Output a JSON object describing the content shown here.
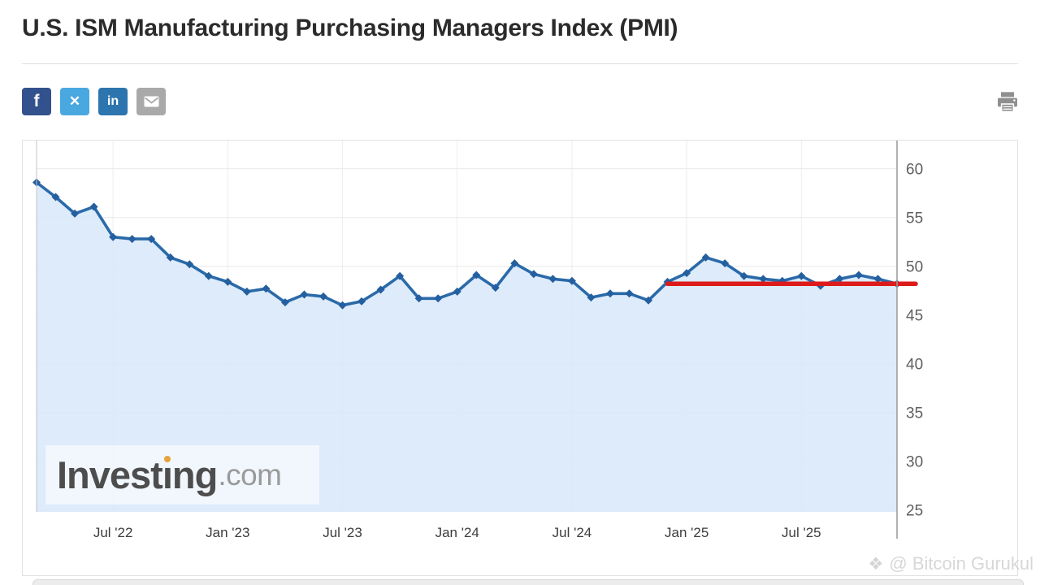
{
  "header": {
    "title": "U.S. ISM Manufacturing Purchasing Managers Index (PMI)"
  },
  "share": {
    "facebook_label": "f",
    "twitter_label": "✕",
    "linkedin_label": "in"
  },
  "chart_data": {
    "type": "area",
    "series_name": "U.S. ISM Manufacturing PMI",
    "x": [
      "Mar '22",
      "Apr '22",
      "May '22",
      "Jun '22",
      "Jul '22",
      "Aug '22",
      "Sep '22",
      "Oct '22",
      "Nov '22",
      "Dec '22",
      "Jan '23",
      "Feb '23",
      "Mar '23",
      "Apr '23",
      "May '23",
      "Jun '23",
      "Jul '23",
      "Aug '23",
      "Sep '23",
      "Oct '23",
      "Nov '23",
      "Dec '23",
      "Jan '24",
      "Feb '24",
      "Mar '24",
      "Apr '24",
      "May '24",
      "Jun '24",
      "Jul '24",
      "Aug '24",
      "Sep '24",
      "Oct '24",
      "Nov '24",
      "Dec '24",
      "Jan '25",
      "Feb '25",
      "Mar '25",
      "Apr '25",
      "May '25",
      "Jun '25",
      "Jul '25",
      "Aug '25",
      "Sep '25",
      "Oct '25",
      "Nov '25",
      "Dec '25"
    ],
    "values": [
      58.6,
      57.1,
      55.4,
      56.1,
      53.0,
      52.8,
      52.8,
      50.9,
      50.2,
      49.0,
      48.4,
      47.4,
      47.7,
      46.3,
      47.1,
      46.9,
      46.0,
      46.4,
      47.6,
      49.0,
      46.7,
      46.7,
      47.4,
      49.1,
      47.8,
      50.3,
      49.2,
      48.7,
      48.5,
      46.8,
      47.2,
      47.2,
      46.5,
      48.4,
      49.3,
      50.9,
      50.3,
      49.0,
      48.7,
      48.5,
      49.0,
      48.0,
      48.7,
      49.1,
      48.7,
      48.2
    ],
    "x_tick_labels": [
      "Jul '22",
      "Jan '23",
      "Jul '23",
      "Jan '24",
      "Jul '24",
      "Jan '25",
      "Jul '25"
    ],
    "x_tick_indices": [
      4,
      10,
      16,
      22,
      28,
      34,
      40
    ],
    "y_ticks": [
      25,
      30,
      35,
      40,
      45,
      50,
      55,
      60
    ],
    "ylim": [
      24.8,
      62.9
    ],
    "grid": true,
    "legend_position": "none",
    "line_color": "#2a6aa9",
    "marker_color": "#245f9f",
    "marker": "diamond",
    "fill_color": "#d7e8fa",
    "axis_color": "#999999",
    "grid_color": "#e7e7e7",
    "y_label_color": "#5f5f5f",
    "x_label_color": "#3c3c3c",
    "annotation_line": {
      "value": 48.2,
      "from_index": 33,
      "color": "#dd1b1b"
    }
  },
  "watermarks": {
    "investing_part1": "Invest",
    "investing_accent_letter": "ı",
    "investing_part2": "ng",
    "investing_suffix": ".com",
    "credit_icon": "❖",
    "credit_text": "@ Bitcoin Gurukul"
  }
}
